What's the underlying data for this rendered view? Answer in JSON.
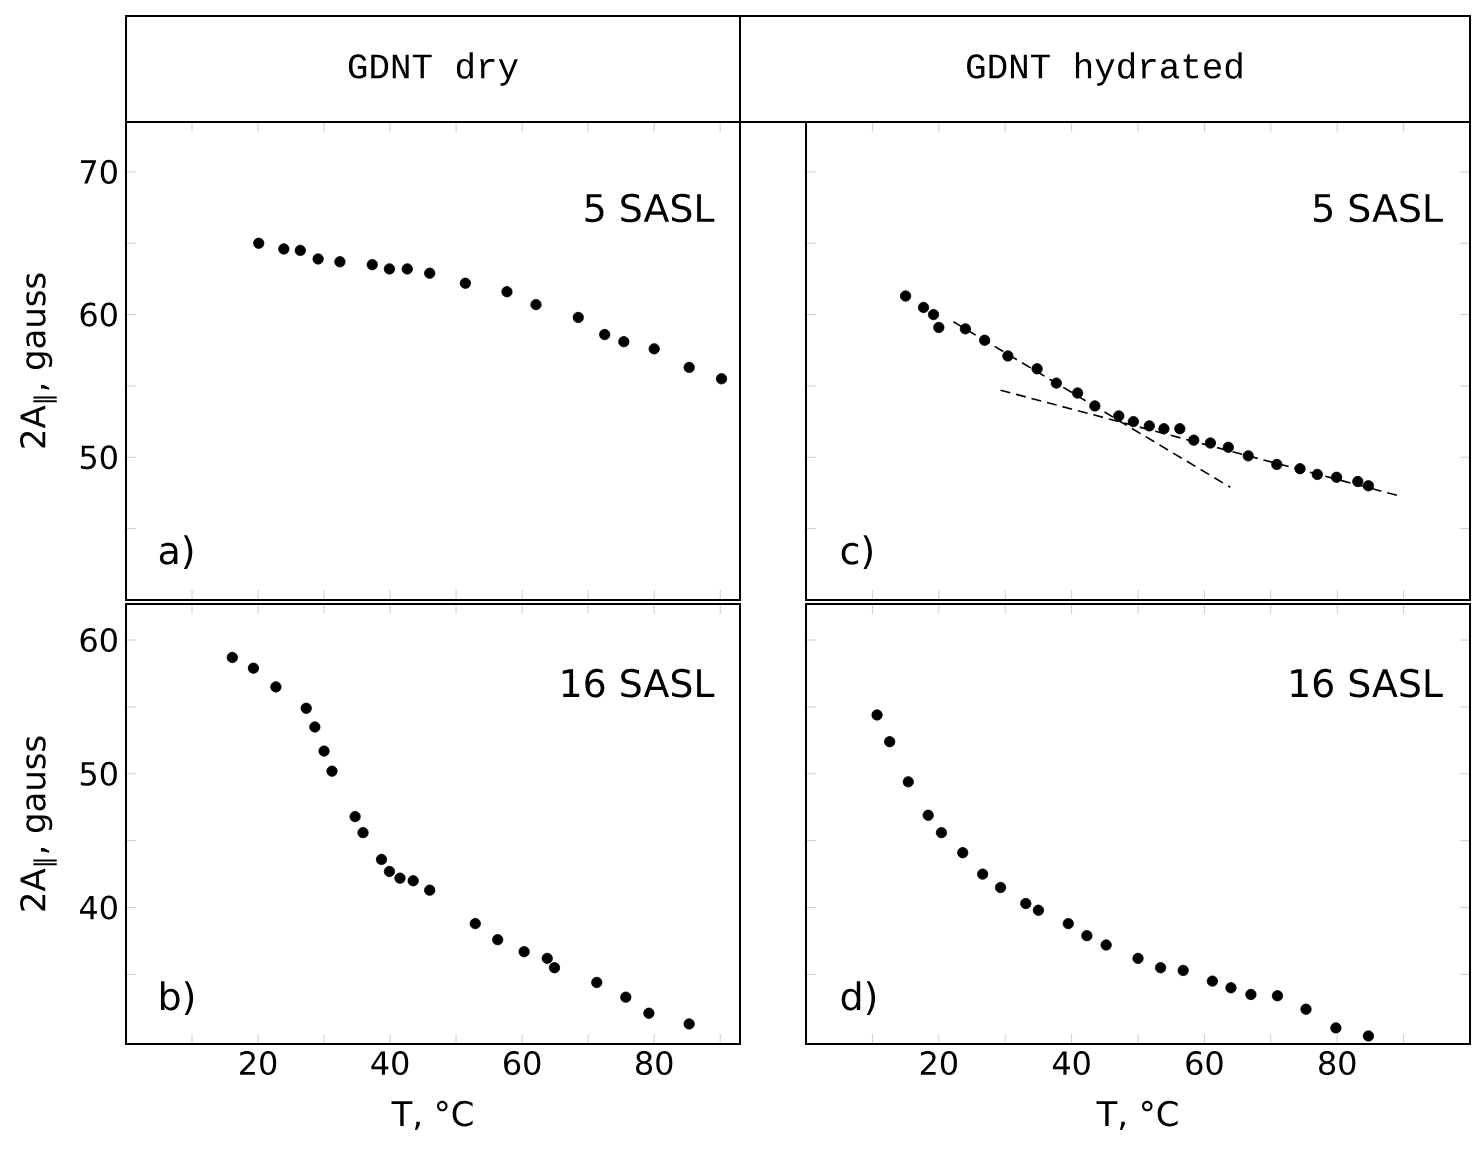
{
  "chart_data": [
    {
      "type": "scatter",
      "title": "GDNT dry",
      "ylabel": "2A$_{∥}$, gauss",
      "annotations": [
        "a)",
        "5 SASL"
      ],
      "tick_labels": "y",
      "xlim": [
        0,
        93
      ],
      "ylim": [
        40,
        73.5
      ],
      "xticks": [
        {
          "value": 10,
          "label": null
        },
        20,
        {
          "value": 30,
          "label": null
        },
        40,
        {
          "value": 50,
          "label": null
        },
        60,
        {
          "value": 70,
          "label": null
        },
        80,
        {
          "value": 90,
          "label": null
        }
      ],
      "yticks": [
        {
          "value": 45,
          "label": null
        },
        50,
        {
          "value": 55,
          "label": null
        },
        60,
        {
          "value": 65,
          "label": null
        },
        70
      ],
      "series": [
        {
          "marker": "circle",
          "color": "#000000",
          "x": [
            20.1,
            23.9,
            26.4,
            29.1,
            32.4,
            37.3,
            39.9,
            42.6,
            46.0,
            51.4,
            57.7,
            62.1,
            68.5,
            72.5,
            75.4,
            80.0,
            85.3,
            90.2
          ],
          "values": [
            65.0,
            64.6,
            64.5,
            63.9,
            63.7,
            63.5,
            63.2,
            63.2,
            62.9,
            62.2,
            61.6,
            60.7,
            59.8,
            58.6,
            58.1,
            57.6,
            56.3,
            55.5
          ]
        }
      ]
    },
    {
      "type": "scatter",
      "title": "GDNT hydrated",
      "annotations": [
        "c)",
        "5 SASL"
      ],
      "tick_labels": false,
      "xlim": [
        0,
        100
      ],
      "ylim": [
        40,
        73.5
      ],
      "xticks": [
        {
          "value": 10,
          "label": null
        },
        20,
        {
          "value": 30,
          "label": null
        },
        40,
        {
          "value": 50,
          "label": null
        },
        60,
        {
          "value": 70,
          "label": null
        },
        80,
        {
          "value": 90,
          "label": null
        }
      ],
      "yticks": [
        {
          "value": 45,
          "label": null
        },
        50,
        {
          "value": 55,
          "label": null
        },
        60,
        {
          "value": 65,
          "label": null
        },
        70
      ],
      "series": [
        {
          "marker": "circle",
          "color": "#000000",
          "x": [
            15.0,
            17.7,
            19.2,
            20.0,
            24.0,
            26.9,
            30.4,
            34.8,
            37.7,
            40.9,
            43.5,
            47.1,
            49.3,
            51.7,
            53.9,
            56.3,
            58.4,
            60.9,
            63.6,
            66.6,
            70.9,
            74.4,
            77.0,
            79.9,
            83.1,
            84.7
          ],
          "values": [
            61.3,
            60.5,
            60.0,
            59.1,
            59.0,
            58.2,
            57.1,
            56.2,
            55.2,
            54.5,
            53.6,
            52.9,
            52.5,
            52.2,
            52.0,
            52.0,
            51.2,
            51.0,
            50.7,
            50.1,
            49.5,
            49.2,
            48.8,
            48.6,
            48.3,
            48.0
          ]
        },
        {
          "type": "line",
          "line_style": "dashed",
          "marker": "none",
          "color": "#000000",
          "x": [
            22.2,
            63.9
          ],
          "values": [
            59.5,
            47.9
          ]
        },
        {
          "type": "line",
          "line_style": "dashed",
          "marker": "none",
          "color": "#000000",
          "x": [
            29.3,
            89.3
          ],
          "values": [
            54.7,
            47.3
          ]
        }
      ]
    },
    {
      "type": "scatter",
      "xlabel": "T, °C",
      "ylabel": "2A$_{∥}$, gauss",
      "annotations": [
        "b)",
        "16 SASL"
      ],
      "xlim": [
        0,
        93
      ],
      "ylim": [
        29.8,
        62.7
      ],
      "xticks": [
        {
          "value": 10,
          "label": null
        },
        20,
        {
          "value": 30,
          "label": null
        },
        40,
        {
          "value": 50,
          "label": null
        },
        60,
        {
          "value": 70,
          "label": null
        },
        80,
        {
          "value": 90,
          "label": null
        }
      ],
      "yticks": [
        {
          "value": 35,
          "label": null
        },
        40,
        {
          "value": 45,
          "label": null
        },
        50,
        {
          "value": 55,
          "label": null
        },
        60
      ],
      "series": [
        {
          "marker": "circle",
          "color": "#000000",
          "x": [
            16.1,
            19.3,
            22.7,
            27.3,
            28.6,
            30.0,
            31.2,
            34.7,
            35.9,
            38.7,
            39.9,
            41.5,
            43.5,
            46.0,
            52.9,
            56.3,
            60.3,
            63.8,
            64.9,
            71.3,
            75.7,
            79.2,
            85.3
          ],
          "values": [
            58.7,
            57.9,
            56.5,
            54.9,
            53.5,
            51.7,
            50.2,
            46.8,
            45.6,
            43.6,
            42.7,
            42.2,
            42.0,
            41.3,
            38.8,
            37.6,
            36.7,
            36.2,
            35.5,
            34.4,
            33.3,
            32.1,
            31.3
          ]
        }
      ]
    },
    {
      "type": "scatter",
      "xlabel": "T, °C",
      "annotations": [
        "d)",
        "16 SASL"
      ],
      "tick_labels": "x",
      "xlim": [
        0,
        100
      ],
      "ylim": [
        29.8,
        62.7
      ],
      "xticks": [
        {
          "value": 10,
          "label": null
        },
        20,
        {
          "value": 30,
          "label": null
        },
        40,
        {
          "value": 50,
          "label": null
        },
        60,
        {
          "value": 70,
          "label": null
        },
        80,
        {
          "value": 90,
          "label": null
        }
      ],
      "yticks": [
        {
          "value": 35,
          "label": null
        },
        40,
        {
          "value": 45,
          "label": null
        },
        50,
        {
          "value": 55,
          "label": null
        },
        60
      ],
      "series": [
        {
          "marker": "circle",
          "color": "#000000",
          "x": [
            10.7,
            12.6,
            15.4,
            18.4,
            20.4,
            23.6,
            26.6,
            29.3,
            33.1,
            35.0,
            39.5,
            42.3,
            45.2,
            50.0,
            53.4,
            56.8,
            61.2,
            64.0,
            67.0,
            71.0,
            75.3,
            79.8,
            84.7
          ],
          "values": [
            54.4,
            52.4,
            49.4,
            46.9,
            45.6,
            44.1,
            42.5,
            41.5,
            40.3,
            39.8,
            38.8,
            37.9,
            37.2,
            36.2,
            35.5,
            35.3,
            34.5,
            34.0,
            33.5,
            33.4,
            32.4,
            31.0,
            30.4
          ]
        }
      ]
    }
  ]
}
